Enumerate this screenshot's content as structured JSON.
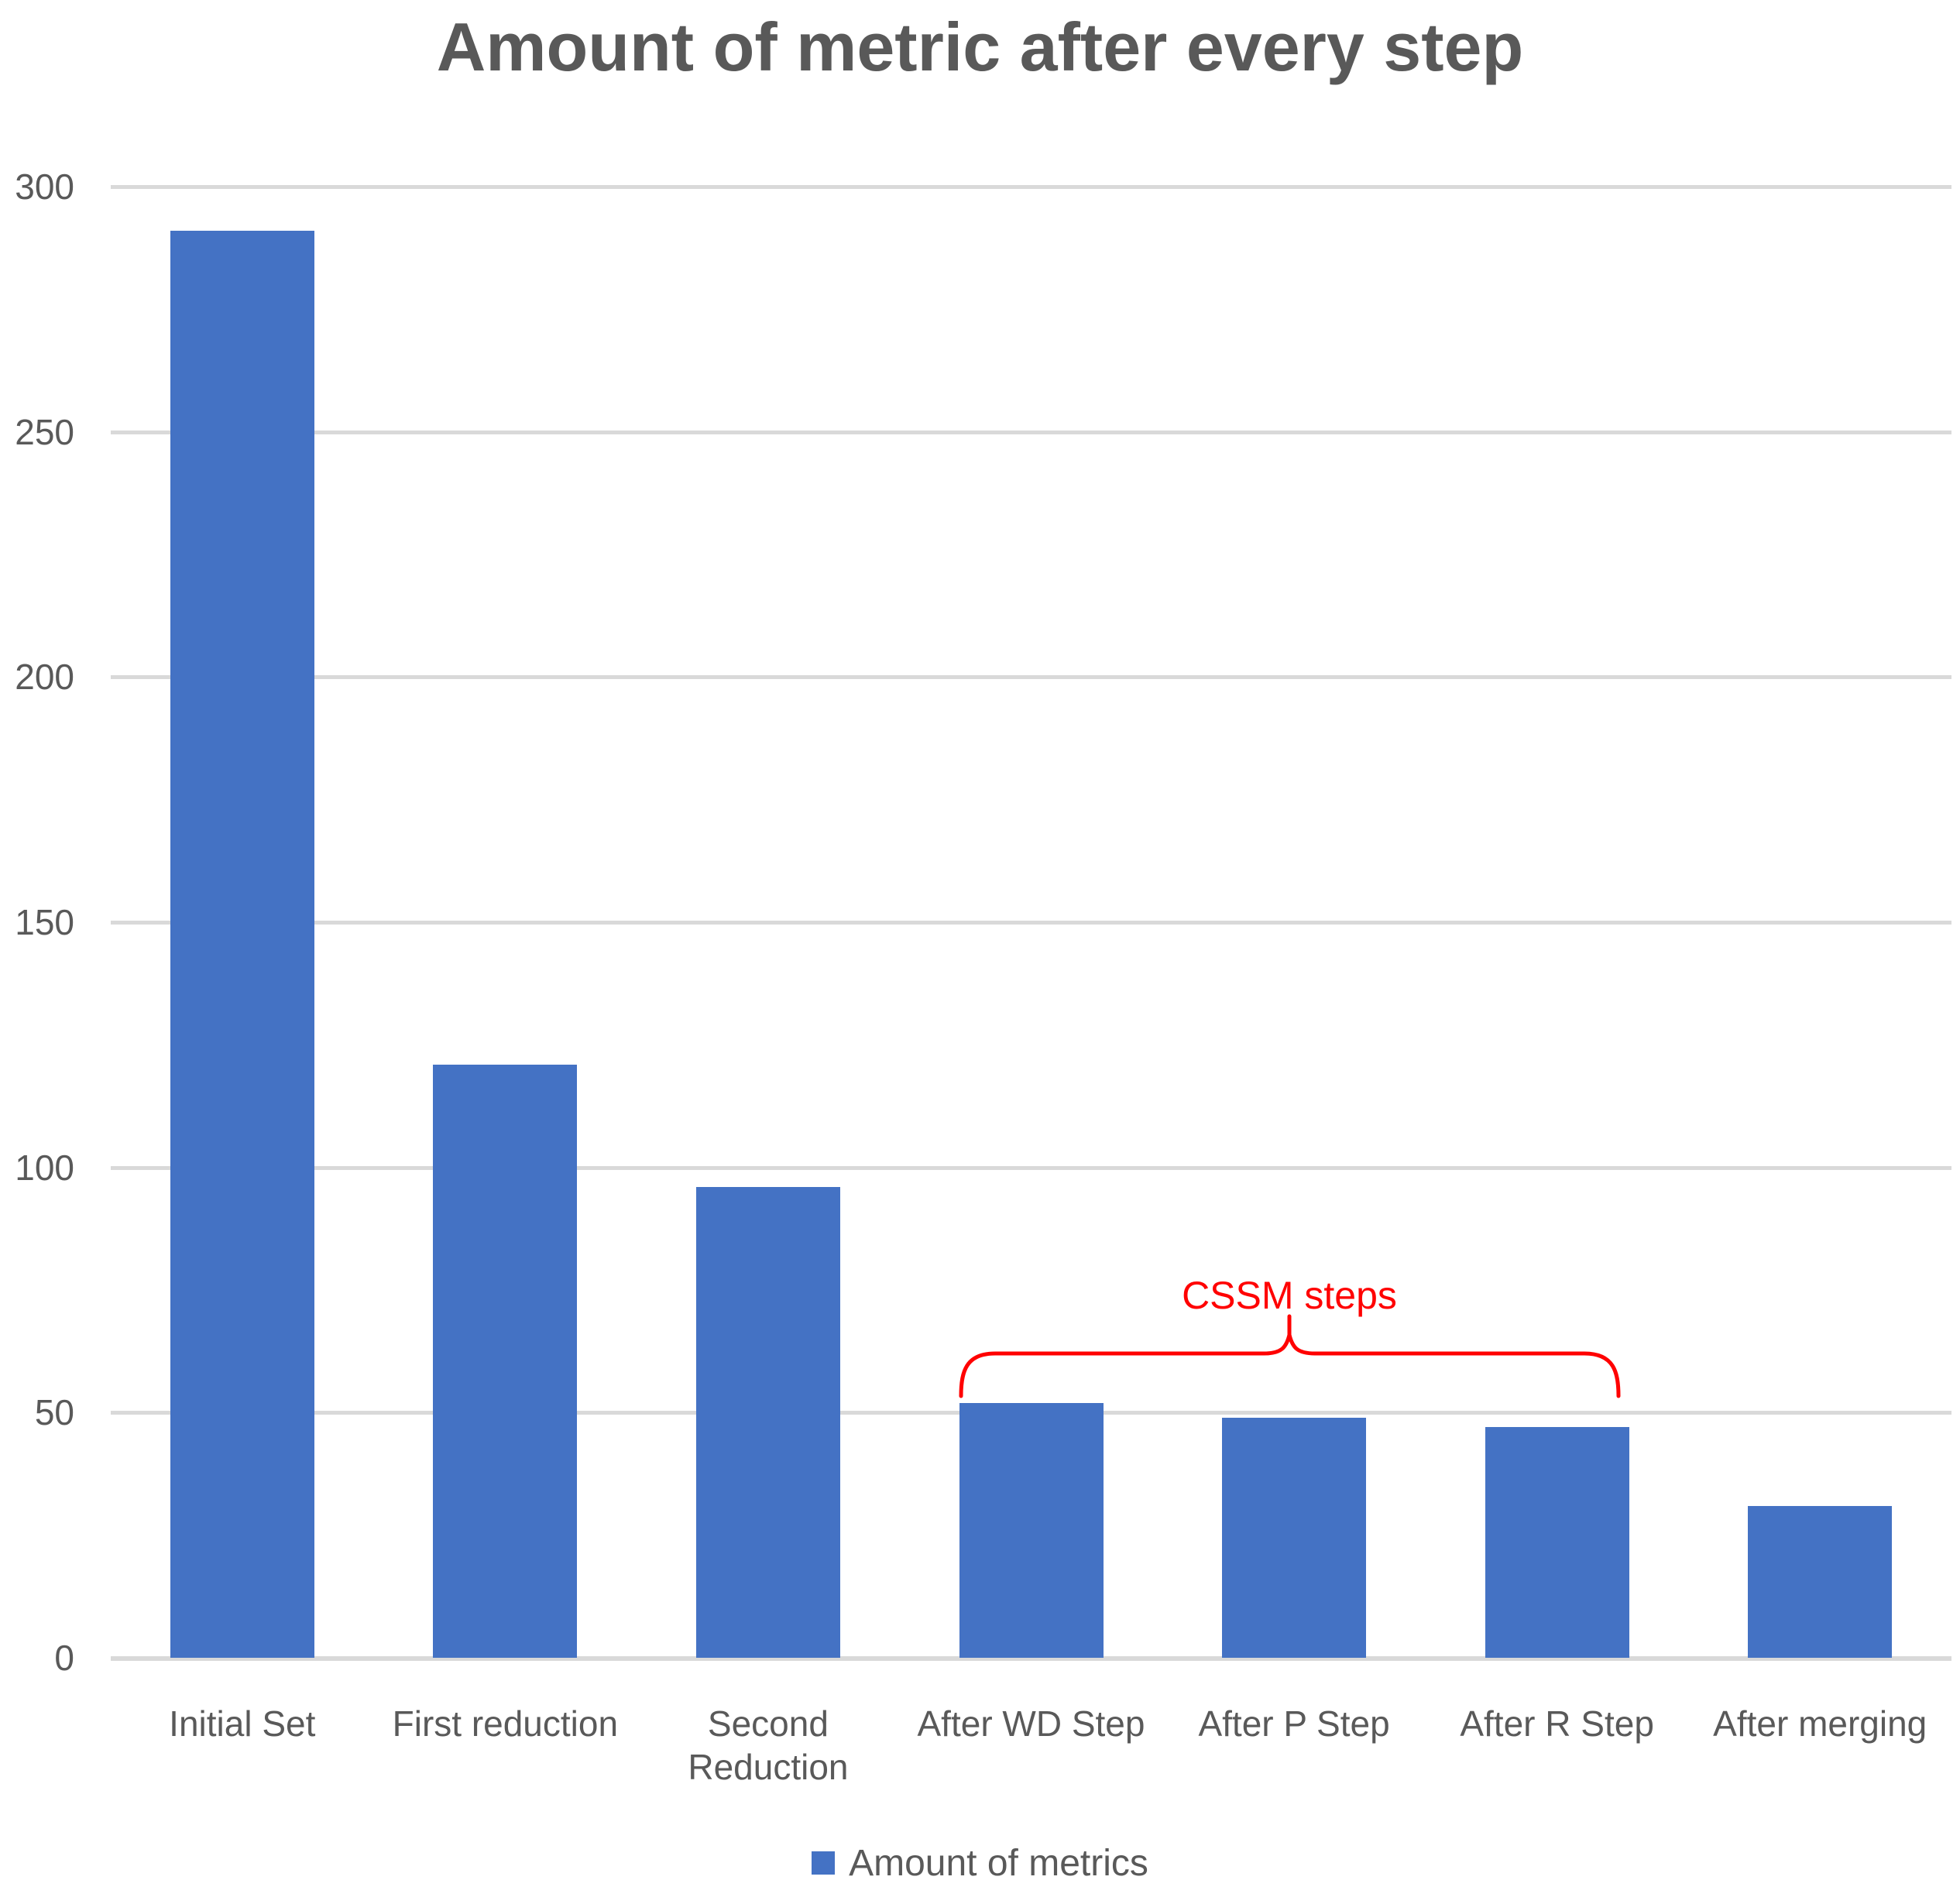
{
  "chart_data": {
    "type": "bar",
    "title": "Amount of metric after every step",
    "categories": [
      "Initial Set",
      "First reduction",
      "Second\nReduction",
      "After WD Step",
      "After P Step",
      "After R Step",
      "After merging"
    ],
    "values": [
      291,
      121,
      96,
      52,
      49,
      47,
      31
    ],
    "series": [
      {
        "name": "Amount of metrics",
        "values": [
          291,
          121,
          96,
          52,
          49,
          47,
          31
        ]
      }
    ],
    "xlabel": "",
    "ylabel": "",
    "ylim": [
      0,
      300
    ],
    "yticks": [
      0,
      50,
      100,
      150,
      200,
      250,
      300
    ],
    "grid": true,
    "legend": {
      "label": "Amount of metrics",
      "position": "bottom"
    },
    "annotation": {
      "label": "CSSM steps",
      "color": "#FF0000",
      "targets": [
        "After WD Step",
        "After P Step",
        "After R Step"
      ]
    },
    "colors": {
      "bar": "#4472C4",
      "text": "#595959",
      "gridline": "#D9D9D9",
      "background": "#FFFFFF"
    }
  }
}
